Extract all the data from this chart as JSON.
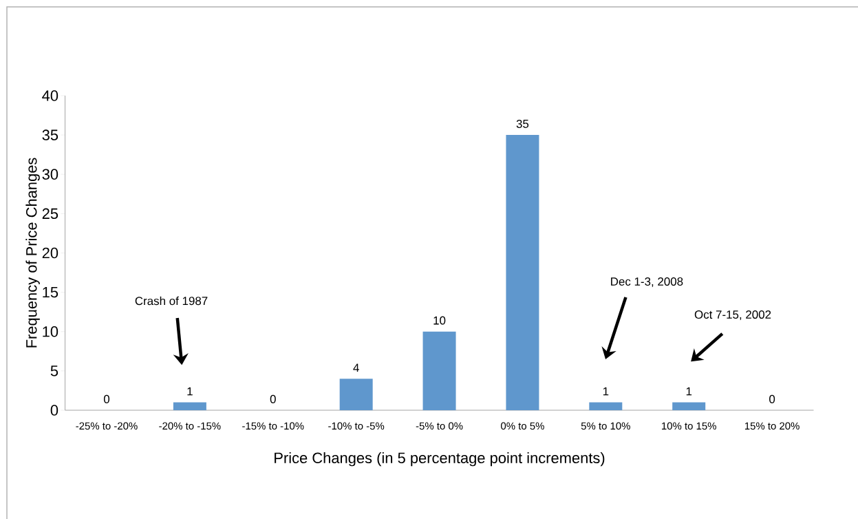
{
  "chart_data": {
    "type": "bar",
    "xlabel": "Price Changes (in 5 percentage point increments)",
    "ylabel": "Frequency of Price Changes",
    "categories": [
      "-25% to -20%",
      "-20% to -15%",
      "-15% to -10%",
      "-10% to -5%",
      "-5% to 0%",
      "0% to 5%",
      "5% to 10%",
      "10% to 15%",
      "15% to 20%"
    ],
    "values": [
      0,
      1,
      0,
      4,
      10,
      35,
      1,
      1,
      0
    ],
    "color": "#5f97cd",
    "data_labels": true,
    "ylim": [
      0,
      40
    ],
    "yticks": [
      0,
      5,
      10,
      15,
      20,
      25,
      30,
      35,
      40
    ],
    "annotations": [
      "Crash of 1987",
      "Dec 1-3, 2008",
      "Oct 7-15, 2002"
    ]
  }
}
